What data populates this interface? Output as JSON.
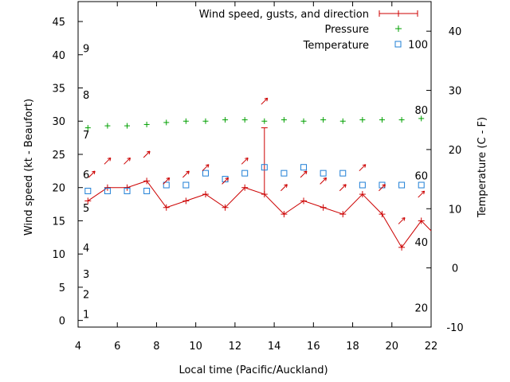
{
  "chart_data": {
    "type": "line",
    "xlabel": "Local time (Pacific/Auckland)",
    "ylabel_left": "Wind speed (kt - Beaufort)",
    "ylabel_right": "Temperature (C - F)",
    "xlim": [
      4,
      22
    ],
    "ylim_left": [
      -1,
      48
    ],
    "ylim_right": [
      -10,
      45
    ],
    "x_ticks": [
      "4",
      "6",
      "8",
      "10",
      "12",
      "14",
      "16",
      "18",
      "20",
      "22"
    ],
    "y_left_ticks": [
      "0",
      "5",
      "10",
      "15",
      "20",
      "25",
      "30",
      "35",
      "40",
      "45"
    ],
    "y_right_ticks": [
      "-10",
      "0",
      "10",
      "20",
      "30",
      "40"
    ],
    "beaufort_labels": [
      {
        "label": "1",
        "value": 1
      },
      {
        "label": "2",
        "value": 4
      },
      {
        "label": "3",
        "value": 7
      },
      {
        "label": "4",
        "value": 11
      },
      {
        "label": "5",
        "value": 17
      },
      {
        "label": "6",
        "value": 22
      },
      {
        "label": "7",
        "value": 28
      },
      {
        "label": "8",
        "value": 34
      },
      {
        "label": "9",
        "value": 41
      }
    ],
    "fahrenheit_labels": [
      {
        "label": "20",
        "value_c": -6.7
      },
      {
        "label": "40",
        "value_c": 4.4
      },
      {
        "label": "60",
        "value_c": 15.6
      },
      {
        "label": "80",
        "value_c": 26.7
      },
      {
        "label": "100",
        "value_c": 37.8
      }
    ],
    "series": [
      {
        "name": "Wind speed, gusts, and direction",
        "color": "#cc0000",
        "x": [
          4.5,
          5.5,
          6.5,
          7.5,
          8.5,
          9.5,
          10.5,
          11.5,
          12.5,
          13.5,
          14.5,
          15.5,
          16.5,
          17.5,
          18.5,
          19.5,
          20.5,
          21.5,
          22
        ],
        "y": [
          18,
          20,
          20,
          21,
          17,
          18,
          19,
          17,
          20,
          19,
          16,
          18,
          17,
          16,
          19,
          16,
          11,
          15,
          13.5
        ],
        "gusts": [
          {
            "x": 13.5,
            "y": 29
          }
        ],
        "direction_arrows": [
          {
            "x": 4.7,
            "y": 22
          },
          {
            "x": 5.5,
            "y": 24
          },
          {
            "x": 6.5,
            "y": 24
          },
          {
            "x": 7.5,
            "y": 25
          },
          {
            "x": 8.5,
            "y": 21
          },
          {
            "x": 9.5,
            "y": 22
          },
          {
            "x": 10.5,
            "y": 23
          },
          {
            "x": 11.5,
            "y": 21
          },
          {
            "x": 12.5,
            "y": 24
          },
          {
            "x": 13.5,
            "y": 33
          },
          {
            "x": 14.5,
            "y": 20
          },
          {
            "x": 15.5,
            "y": 22
          },
          {
            "x": 16.5,
            "y": 21
          },
          {
            "x": 17.5,
            "y": 20
          },
          {
            "x": 18.5,
            "y": 23
          },
          {
            "x": 19.5,
            "y": 20
          },
          {
            "x": 20.5,
            "y": 15
          },
          {
            "x": 21.5,
            "y": 19
          }
        ]
      },
      {
        "name": "Pressure",
        "color": "#00a000",
        "x": [
          4.5,
          5.5,
          6.5,
          7.5,
          8.5,
          9.5,
          10.5,
          11.5,
          12.5,
          13.5,
          14.5,
          15.5,
          16.5,
          17.5,
          18.5,
          19.5,
          20.5,
          21.5
        ],
        "y": [
          29,
          29.3,
          29.3,
          29.5,
          29.8,
          30,
          30,
          30.2,
          30.2,
          30,
          30.2,
          30,
          30.2,
          30,
          30.2,
          30.2,
          30.2,
          30.4
        ]
      },
      {
        "name": "Temperature",
        "color": "#1f7fd6",
        "x": [
          4.5,
          5.5,
          6.5,
          7.5,
          8.5,
          9.5,
          10.5,
          11.5,
          12.5,
          13.5,
          14.5,
          15.5,
          16.5,
          17.5,
          18.5,
          19.5,
          20.5,
          21.5
        ],
        "y": [
          13,
          13,
          13,
          13,
          14,
          14,
          16,
          15,
          16,
          17,
          16,
          17,
          16,
          16,
          14,
          14,
          14,
          14
        ]
      }
    ]
  }
}
